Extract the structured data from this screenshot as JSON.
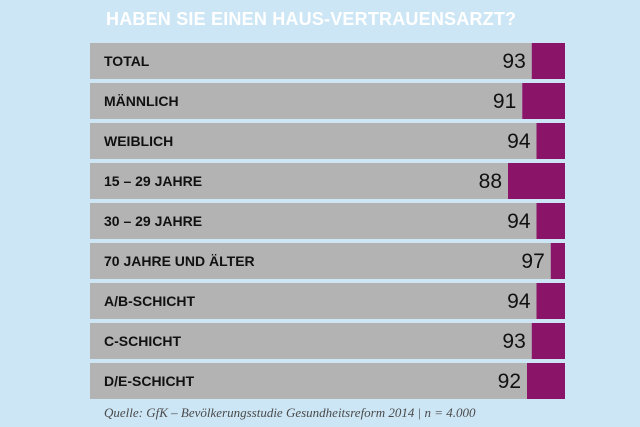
{
  "chart_data": {
    "type": "bar",
    "title": "HABEN SIE EINEN HAUS-VERTRAUENSARZT?",
    "categories": [
      "TOTAL",
      "MÄNNLICH",
      "WEIBLICH",
      "15 – 29 JAHRE",
      "30 – 29 JAHRE",
      "70 JAHRE UND ÄLTER",
      "A/B-SCHICHT",
      "C-SCHICHT",
      "D/E-SCHICHT"
    ],
    "values": [
      93,
      91,
      94,
      88,
      94,
      97,
      94,
      93,
      92
    ],
    "ylim": [
      0,
      100
    ],
    "orientation": "horizontal",
    "colors": {
      "background": "#cde6f5",
      "yes_bar": "#b3b3b3",
      "no_bar": "#8a1468",
      "title": "#ffffff",
      "text": "#111111"
    }
  },
  "source": "Quelle: GfK – Bevölkerungsstudie Gesundheitsreform 2014 | n = 4.000"
}
